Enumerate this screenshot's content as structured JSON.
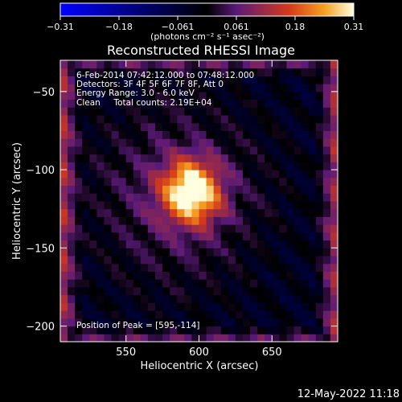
{
  "chart_data": {
    "type": "heatmap",
    "title": "Reconstructed RHESSI Image",
    "xlabel": "Heliocentric X (arcsec)",
    "ylabel": "Heliocentric Y (arcsec)",
    "xlim": [
      505,
      695
    ],
    "ylim": [
      -210,
      -30
    ],
    "xticks": [
      550,
      600,
      650
    ],
    "yticks": [
      -50,
      -100,
      -150,
      -200
    ],
    "colorbar": {
      "min": -0.31,
      "max": 0.31,
      "tick_labels": [
        "−0.31",
        "−0.18",
        "−0.061",
        "0.061",
        "0.18",
        "0.31"
      ],
      "label": "(photons cm⁻² s⁻¹ asec⁻²)",
      "colors": [
        "#0000ff",
        "#000000",
        "#5a1a78",
        "#d43a1a",
        "#f5a020",
        "#ffffe0"
      ]
    },
    "annotations": [
      "6-Feb-2014 07:42:12.000 to 07:48:12.000",
      "Detectors: 3F 4F 5F 6F 7F 8F, Att 0",
      "Energy Range: 3.0 - 6.0 keV",
      "Clean     Total counts: 2.19E+04"
    ],
    "peak_label": "Position of Peak = [595,-114]",
    "peak": {
      "x": 595,
      "y": -114,
      "value": 0.31
    },
    "sources": [
      {
        "x": 595,
        "y": -114,
        "amplitude": 0.31,
        "width": 14
      },
      {
        "x": 585,
        "y": -115,
        "amplitude": 0.1,
        "width": 40
      }
    ],
    "background_value": -0.04,
    "grid": false
  },
  "timestamp": "12-May-2022 11:18"
}
